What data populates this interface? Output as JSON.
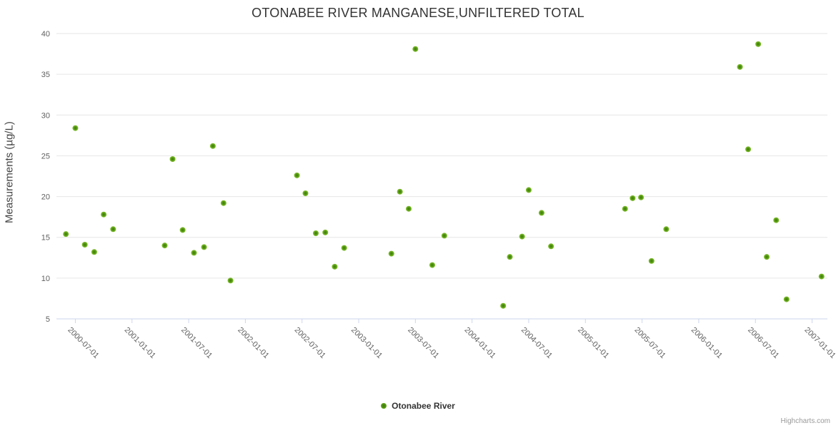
{
  "chart": {
    "title": "OTONABEE RIVER MANGANESE,UNFILTERED TOTAL",
    "credits_text": "Highcharts.com"
  },
  "legend": {
    "items": [
      {
        "label": "Otonabee River",
        "marker_icon": "legend-dot-icon",
        "color": "#7ab92a"
      }
    ]
  },
  "colors": {
    "point_edge": "#7ab92a",
    "point_core": "#3e7d09",
    "grid": "#e6e6e6",
    "axis_line": "#ccd6eb",
    "title_text": "#333333",
    "axis_text": "#606060",
    "credits_text": "#999999"
  },
  "chart_data": {
    "type": "scatter",
    "title": "OTONABEE RIVER MANGANESE,UNFILTERED TOTAL",
    "xlabel": "",
    "ylabel": "Measurements (µg/L)",
    "ylim": [
      5,
      40
    ],
    "y_ticks": [
      5,
      10,
      15,
      20,
      25,
      30,
      35,
      40
    ],
    "xlim": [
      "2000-05-01",
      "2007-02-20"
    ],
    "x_ticks": [
      "2000-07-01",
      "2001-01-01",
      "2001-07-01",
      "2002-01-01",
      "2002-07-01",
      "2003-01-01",
      "2003-07-01",
      "2004-01-01",
      "2004-07-01",
      "2005-01-01",
      "2005-07-01",
      "2006-01-01",
      "2006-07-01",
      "2007-01-01"
    ],
    "grid": "horizontal-only",
    "legend_position": "bottom-center",
    "series": [
      {
        "name": "Otonabee River",
        "points": [
          {
            "x": "2000-06-01",
            "y": 15.4
          },
          {
            "x": "2000-07-01",
            "y": 28.4
          },
          {
            "x": "2000-08-01",
            "y": 14.1
          },
          {
            "x": "2000-09-01",
            "y": 13.2
          },
          {
            "x": "2000-10-01",
            "y": 17.8
          },
          {
            "x": "2000-11-01",
            "y": 16.0
          },
          {
            "x": "2001-04-15",
            "y": 14.0
          },
          {
            "x": "2001-05-10",
            "y": 24.6
          },
          {
            "x": "2001-06-12",
            "y": 15.9
          },
          {
            "x": "2001-07-18",
            "y": 13.1
          },
          {
            "x": "2001-08-20",
            "y": 13.8
          },
          {
            "x": "2001-09-18",
            "y": 26.2
          },
          {
            "x": "2001-10-22",
            "y": 19.2
          },
          {
            "x": "2001-11-14",
            "y": 9.7
          },
          {
            "x": "2002-06-15",
            "y": 22.6
          },
          {
            "x": "2002-07-12",
            "y": 20.4
          },
          {
            "x": "2002-08-15",
            "y": 15.5
          },
          {
            "x": "2002-09-15",
            "y": 15.6
          },
          {
            "x": "2002-10-15",
            "y": 11.4
          },
          {
            "x": "2002-11-15",
            "y": 13.7
          },
          {
            "x": "2003-04-15",
            "y": 13.0
          },
          {
            "x": "2003-05-12",
            "y": 20.6
          },
          {
            "x": "2003-06-10",
            "y": 18.5
          },
          {
            "x": "2003-07-01",
            "y": 38.1
          },
          {
            "x": "2003-08-25",
            "y": 11.6
          },
          {
            "x": "2003-10-03",
            "y": 15.2
          },
          {
            "x": "2004-04-10",
            "y": 6.6
          },
          {
            "x": "2004-05-01",
            "y": 12.6
          },
          {
            "x": "2004-06-10",
            "y": 15.1
          },
          {
            "x": "2004-07-01",
            "y": 20.8
          },
          {
            "x": "2004-08-12",
            "y": 18.0
          },
          {
            "x": "2004-09-12",
            "y": 13.9
          },
          {
            "x": "2005-05-07",
            "y": 18.5
          },
          {
            "x": "2005-06-01",
            "y": 19.8
          },
          {
            "x": "2005-06-28",
            "y": 19.9
          },
          {
            "x": "2005-08-01",
            "y": 12.1
          },
          {
            "x": "2005-09-18",
            "y": 16.0
          },
          {
            "x": "2006-05-12",
            "y": 35.9
          },
          {
            "x": "2006-06-08",
            "y": 25.8
          },
          {
            "x": "2006-07-10",
            "y": 38.7
          },
          {
            "x": "2006-08-07",
            "y": 12.6
          },
          {
            "x": "2006-09-07",
            "y": 17.1
          },
          {
            "x": "2006-10-10",
            "y": 7.4
          },
          {
            "x": "2007-02-01",
            "y": 10.2
          }
        ]
      }
    ]
  }
}
